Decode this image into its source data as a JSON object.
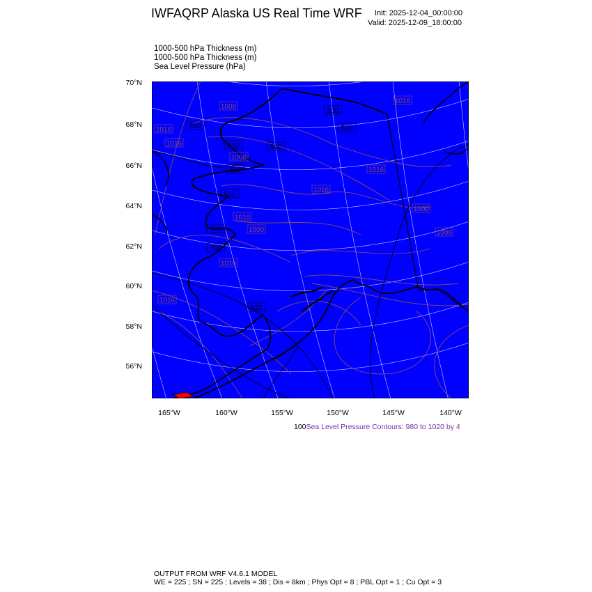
{
  "header": {
    "title": "IWFAQRP Alaska US Real Time WRF",
    "init": "Init: 2025-12-04_00:00:00",
    "valid": "Valid: 2025-12-09_18:00:00"
  },
  "fields": [
    "1000-500 hPa Thickness   (m)",
    "1000-500 hPa Thickness   (m)",
    "Sea Level Pressure   (hPa)"
  ],
  "map": {
    "background_color": "#0000ff",
    "contour_color": "#8b4a5a",
    "coast_color": "#000000",
    "grid_color": "#c8c8ff",
    "lat_labels": [
      "70°N",
      "68°N",
      "66°N",
      "64°N",
      "62°N",
      "60°N",
      "58°N",
      "56°N"
    ],
    "lon_labels": [
      "165°W",
      "160°W",
      "155°W",
      "150°W",
      "145°W",
      "140°W"
    ],
    "contour_labels": [
      "1016",
      "1016",
      "1008",
      "1008",
      "510",
      "510",
      "510",
      "510",
      "1016",
      "510",
      "510",
      "510",
      "1016",
      "1016",
      "1016",
      "1000",
      "1000",
      "1000",
      "522",
      "510",
      "510",
      "1016",
      "1016"
    ]
  },
  "contour_note": {
    "prefix": "100",
    "text": "Sea Level Pressure Contours: 980 to 1020 by 4"
  },
  "footer": {
    "line1": "OUTPUT FROM WRF V4.6.1 MODEL",
    "line2": "WE = 225 ; SN = 225 ; Levels = 38 ; Dis = 8km ; Phys Opt = 8 ; PBL Opt = 1 ; Cu Opt = 3"
  }
}
